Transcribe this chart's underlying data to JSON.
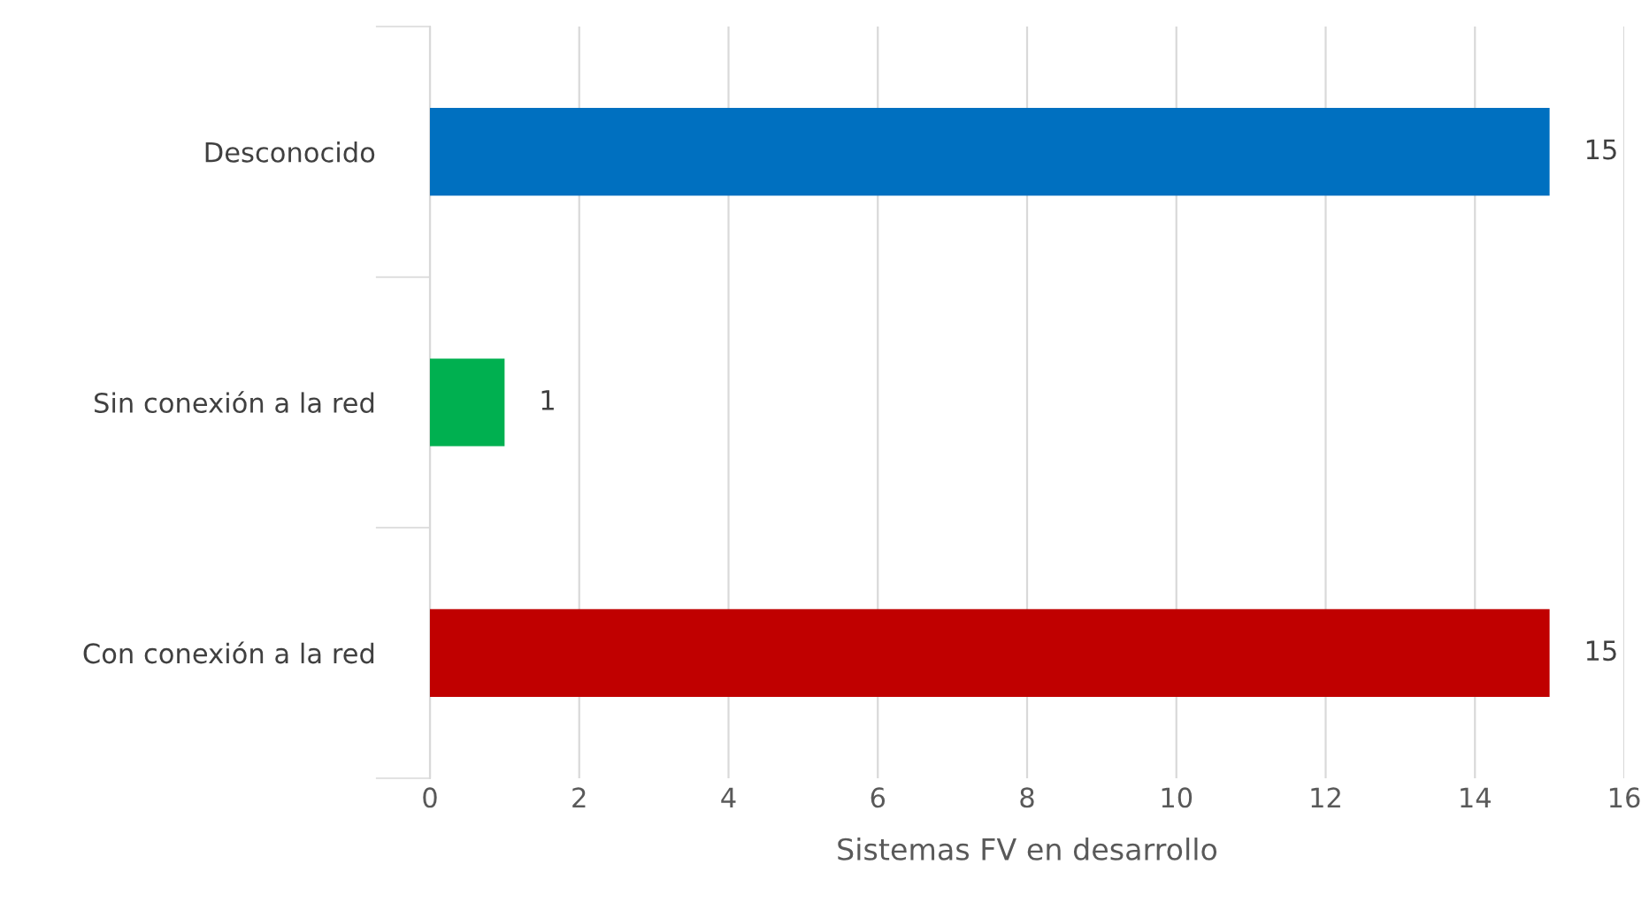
{
  "chart_data": {
    "type": "bar",
    "orientation": "horizontal",
    "categories": [
      "Desconocido",
      "Sin conexión a la red",
      "Con conexión a la red"
    ],
    "values": [
      15,
      1,
      15
    ],
    "colors": [
      "#0070c0",
      "#00b050",
      "#c00000"
    ],
    "xlabel": "Sistemas FV en desarrollo",
    "xlim": [
      0,
      16
    ],
    "xticks": [
      0,
      2,
      4,
      6,
      8,
      10,
      12,
      14,
      16
    ],
    "grid": "x",
    "data_labels": true
  }
}
